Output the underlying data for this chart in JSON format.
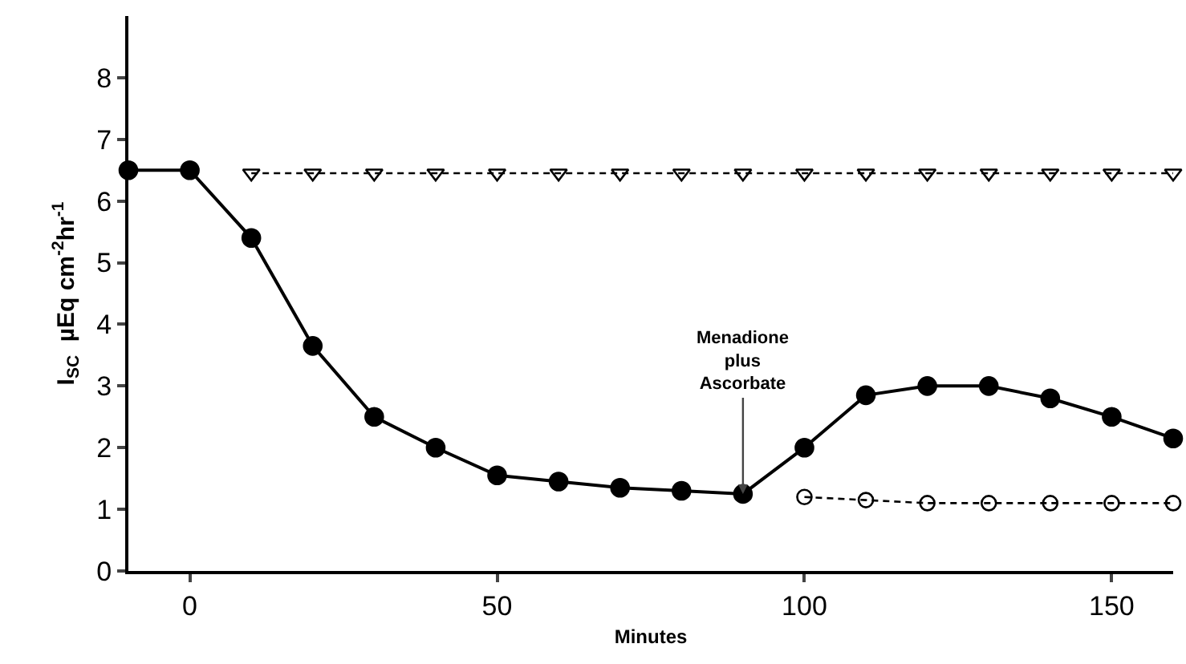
{
  "chart_data": {
    "type": "line",
    "xlabel": "Minutes",
    "ylabel": "I$_{SC}$  µEq cm$^{-2}$hr$^{-1}$",
    "xlim": [
      -10,
      160
    ],
    "xticks": [
      0,
      50,
      100,
      150
    ],
    "ylim": [
      0,
      9
    ],
    "yticks": [
      0,
      1,
      2,
      3,
      4,
      5,
      6,
      7,
      8
    ],
    "grid": false,
    "annotations": [
      {
        "text": "Menadione\nplus\nAscorbate",
        "x": 90,
        "y": 1.25
      }
    ],
    "series": [
      {
        "color": "#000000",
        "marker": "circle",
        "line_style": "solid",
        "x": [
          -10,
          0,
          10,
          20,
          30,
          40,
          50,
          60,
          70,
          80,
          90,
          100,
          110,
          120,
          130,
          140,
          150,
          160
        ],
        "values": [
          6.5,
          6.5,
          5.4,
          3.65,
          2.5,
          2.0,
          1.55,
          1.45,
          1.35,
          1.3,
          1.25,
          2.0,
          2.85,
          3.0,
          3.0,
          2.8,
          2.5,
          2.15
        ]
      },
      {
        "color": "#000000",
        "marker": "triangle",
        "line_style": "dashed",
        "x": [
          10,
          20,
          30,
          40,
          50,
          60,
          70,
          80,
          90,
          100,
          110,
          120,
          130,
          140,
          150,
          160
        ],
        "values": [
          6.45,
          6.45,
          6.45,
          6.45,
          6.45,
          6.45,
          6.45,
          6.45,
          6.45,
          6.45,
          6.45,
          6.45,
          6.45,
          6.45,
          6.45,
          6.45
        ]
      },
      {
        "color": "#000000",
        "marker": "circle",
        "line_style": "dashed",
        "x": [
          100,
          110,
          120,
          130,
          140,
          150,
          160
        ],
        "values": [
          1.2,
          1.15,
          1.1,
          1.1,
          1.1,
          1.1,
          1.1
        ]
      }
    ]
  }
}
